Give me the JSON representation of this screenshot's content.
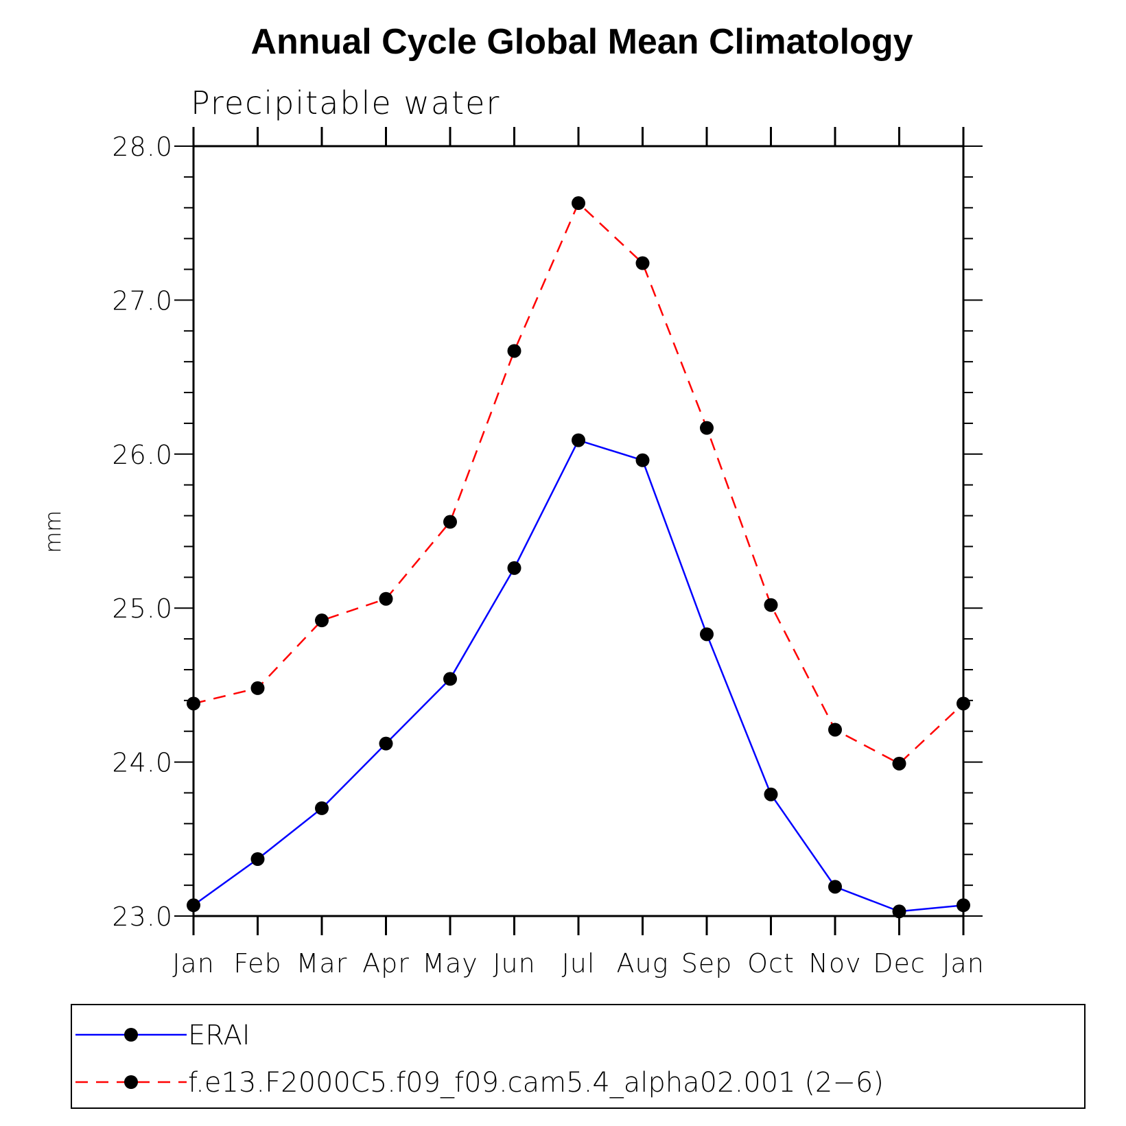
{
  "chart_data": {
    "type": "line",
    "title": "Annual Cycle Global Mean Climatology",
    "subtitle": "Precipitable water",
    "xlabel": "",
    "ylabel": "mm",
    "categories": [
      "Jan",
      "Feb",
      "Mar",
      "Apr",
      "May",
      "Jun",
      "Jul",
      "Aug",
      "Sep",
      "Oct",
      "Nov",
      "Dec",
      "Jan"
    ],
    "ylim": [
      23.0,
      28.0
    ],
    "y_major_ticks": [
      "23.0",
      "24.0",
      "25.0",
      "26.0",
      "27.0",
      "28.0"
    ],
    "y_minor_step": 0.2,
    "grid": false,
    "legend_position": "bottom",
    "series": [
      {
        "name": "ERAI",
        "color": "#0000ff",
        "dash": "solid",
        "marker": "circle",
        "values": [
          23.07,
          23.37,
          23.7,
          24.12,
          24.54,
          25.26,
          26.09,
          25.96,
          24.83,
          23.79,
          23.19,
          23.03,
          23.07
        ]
      },
      {
        "name": "f.e13.F2000C5.f09_f09.cam5.4_alpha02.001 (2−6)",
        "color": "#ff0000",
        "dash": "dashed",
        "marker": "circle",
        "values": [
          24.38,
          24.48,
          24.92,
          25.06,
          25.56,
          26.67,
          27.63,
          27.24,
          26.17,
          25.02,
          24.21,
          23.99,
          24.38
        ]
      }
    ]
  }
}
